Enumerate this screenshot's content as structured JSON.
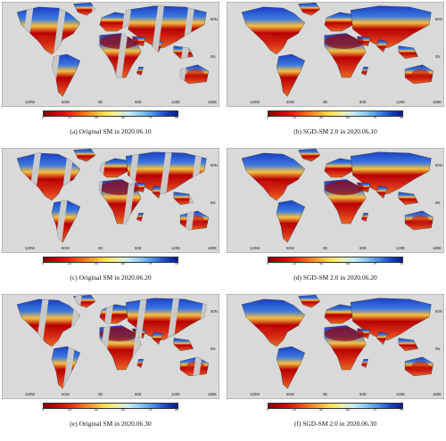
{
  "figure": {
    "panels": [
      {
        "caption": "(a) Original SM in 2020.06.10",
        "kind": "original"
      },
      {
        "caption": "(b) SGD-SM 2.0 in 2020.06.10",
        "kind": "filled"
      },
      {
        "caption": "(c) Original SM in 2020.06.20",
        "kind": "original"
      },
      {
        "caption": "(d) SGD-SM 2.0 in 2020.06.20",
        "kind": "filled"
      },
      {
        "caption": "(e) Original SM in 2020.06.30",
        "kind": "original"
      },
      {
        "caption": "(f) SGD-SM 2.0 in 2020.06.30",
        "kind": "filled"
      }
    ],
    "lon_labels": [
      "120W",
      "60W",
      "0E",
      "60E",
      "120E",
      "180E"
    ],
    "lat_labels": [
      "60N",
      "0N"
    ],
    "colorbar_ticks": [
      "0",
      "20",
      "40",
      "60",
      "79",
      "99"
    ],
    "colors": {
      "ocean": "#d9d9d9",
      "dry": "#b80000",
      "mid": "#f6c040",
      "wet": "#1c3fc4",
      "missing": "#c9c9c9"
    }
  }
}
